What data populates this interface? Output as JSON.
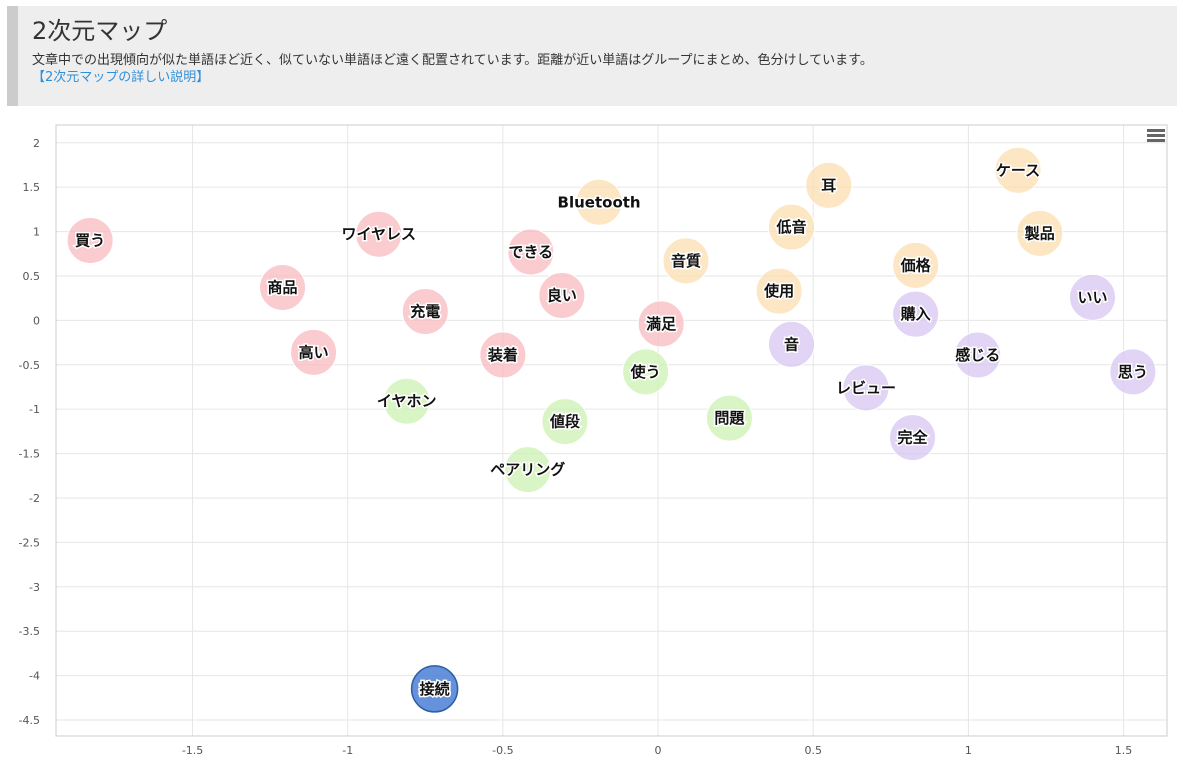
{
  "header": {
    "title": "2次元マップ",
    "description": "文章中での出現傾向が似た単語ほど近く、似ていない単語ほど遠く配置されています。距離が近い単語はグループにまとめ、色分けしています。",
    "link_label": "【2次元マップの詳しい説明】"
  },
  "colors": {
    "group1": "#f8b9bf",
    "group2": "#fbddb0",
    "group3": "#ccf1b3",
    "group4": "#d7c6f2",
    "group5": "#4a7fd4"
  },
  "chart_data": {
    "type": "scatter",
    "xlim": [
      -1.94,
      1.64
    ],
    "ylim": [
      -4.68,
      2.2
    ],
    "xticks": [
      -1.5,
      -1,
      -0.5,
      0,
      0.5,
      1,
      1.5
    ],
    "yticks": [
      2,
      1.5,
      1,
      0.5,
      0,
      -0.5,
      -1,
      -1.5,
      -2,
      -2.5,
      -3,
      -3.5,
      -4,
      -4.5
    ],
    "grid": true,
    "points": [
      {
        "label": "買う",
        "x": -1.83,
        "y": 0.9,
        "group": 1
      },
      {
        "label": "ワイヤレス",
        "x": -0.9,
        "y": 0.97,
        "group": 1
      },
      {
        "label": "商品",
        "x": -1.21,
        "y": 0.37,
        "group": 1
      },
      {
        "label": "高い",
        "x": -1.11,
        "y": -0.36,
        "group": 1
      },
      {
        "label": "充電",
        "x": -0.75,
        "y": 0.1,
        "group": 1
      },
      {
        "label": "できる",
        "x": -0.41,
        "y": 0.77,
        "group": 1
      },
      {
        "label": "良い",
        "x": -0.31,
        "y": 0.28,
        "group": 1
      },
      {
        "label": "装着",
        "x": -0.5,
        "y": -0.39,
        "group": 1
      },
      {
        "label": "満足",
        "x": 0.01,
        "y": -0.04,
        "group": 1
      },
      {
        "label": "Bluetooth",
        "x": -0.19,
        "y": 1.33,
        "group": 2
      },
      {
        "label": "音質",
        "x": 0.09,
        "y": 0.67,
        "group": 2
      },
      {
        "label": "耳",
        "x": 0.55,
        "y": 1.52,
        "group": 2
      },
      {
        "label": "低音",
        "x": 0.43,
        "y": 1.05,
        "group": 2
      },
      {
        "label": "使用",
        "x": 0.39,
        "y": 0.33,
        "group": 2
      },
      {
        "label": "ケース",
        "x": 1.16,
        "y": 1.69,
        "group": 2
      },
      {
        "label": "製品",
        "x": 1.23,
        "y": 0.98,
        "group": 2
      },
      {
        "label": "価格",
        "x": 0.83,
        "y": 0.62,
        "group": 2
      },
      {
        "label": "イヤホン",
        "x": -0.81,
        "y": -0.91,
        "group": 3
      },
      {
        "label": "使う",
        "x": -0.04,
        "y": -0.58,
        "group": 3
      },
      {
        "label": "値段",
        "x": -0.3,
        "y": -1.14,
        "group": 3
      },
      {
        "label": "問題",
        "x": 0.23,
        "y": -1.1,
        "group": 3
      },
      {
        "label": "ペアリング",
        "x": -0.42,
        "y": -1.68,
        "group": 3
      },
      {
        "label": "音",
        "x": 0.43,
        "y": -0.27,
        "group": 4
      },
      {
        "label": "購入",
        "x": 0.83,
        "y": 0.07,
        "group": 4
      },
      {
        "label": "いい",
        "x": 1.4,
        "y": 0.26,
        "group": 4
      },
      {
        "label": "感じる",
        "x": 1.03,
        "y": -0.39,
        "group": 4
      },
      {
        "label": "思う",
        "x": 1.53,
        "y": -0.58,
        "group": 4
      },
      {
        "label": "レビュー",
        "x": 0.67,
        "y": -0.76,
        "group": 4
      },
      {
        "label": "完全",
        "x": 0.82,
        "y": -1.32,
        "group": 4
      },
      {
        "label": "接続",
        "x": -0.72,
        "y": -4.15,
        "group": 5
      }
    ]
  }
}
